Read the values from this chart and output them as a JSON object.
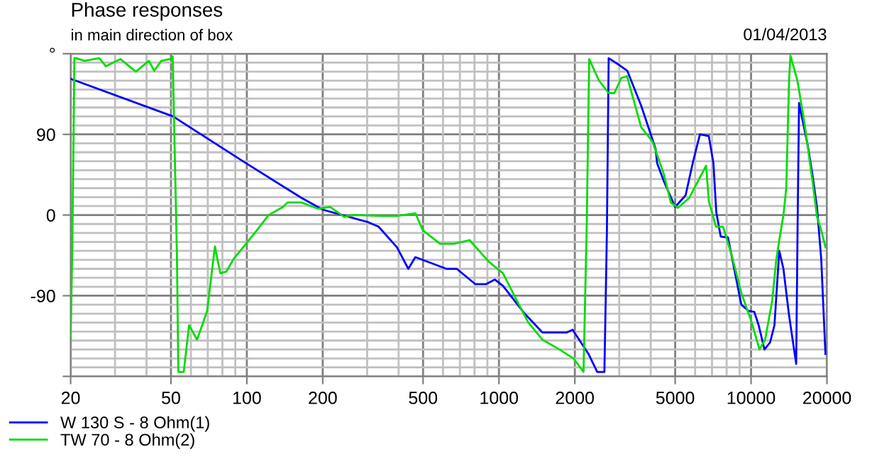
{
  "chart_data": {
    "type": "line",
    "title": "Phase responses",
    "subtitle": "in main direction of box",
    "annotations": [
      "01/04/2013"
    ],
    "log": "x",
    "xlim": [
      20,
      20000
    ],
    "xticks": [
      20,
      50,
      100,
      200,
      500,
      1000,
      2000,
      5000,
      10000,
      20000
    ],
    "ylim": [
      -180,
      180
    ],
    "yticks": [
      {
        "value": 180,
        "label": "°"
      },
      90,
      0,
      -90,
      {
        "value": -180,
        "label": null
      }
    ],
    "grid": true,
    "legend": "bottom",
    "line_style": "solid",
    "marker": "none",
    "series": [
      {
        "name": "W 130 S - 8 Ohm(1)",
        "color": "#0000ff",
        "x": [
          20,
          51,
          99,
          165,
          200,
          303,
          333,
          394,
          437,
          466,
          619,
          680,
          805,
          890,
          962,
          1038,
          1265,
          1487,
          1862,
          1960,
          2266,
          2454,
          2620,
          2680,
          2724,
          3013,
          3228,
          3666,
          4180,
          4240,
          4505,
          5000,
          5500,
          5870,
          6270,
          6800,
          7090,
          7280,
          7580,
          8100,
          9150,
          9780,
          10300,
          10720,
          11300,
          11900,
          12380,
          12940,
          13440,
          14150,
          15100,
          15300,
          15500,
          16800,
          17500,
          18270,
          18980,
          19730
        ],
        "values": [
          152,
          110,
          58,
          19,
          6,
          -8,
          -13,
          -36,
          -60,
          -47,
          -60,
          -60,
          -77,
          -77,
          -72,
          -79,
          -110,
          -131,
          -131,
          -128,
          -155,
          -175,
          -175,
          -20,
          175,
          167,
          161,
          122,
          74,
          58,
          38,
          9,
          22,
          58,
          90,
          88,
          58,
          3,
          -24,
          -25,
          -100,
          -107,
          -108,
          -123,
          -150,
          -142,
          -123,
          -40,
          -60,
          -112,
          -166,
          -10,
          125,
          77,
          46,
          8,
          -49,
          -155
        ]
      },
      {
        "name": "TW 70 - 8 Ohm(2)",
        "color": "#00dd00",
        "x": [
          20,
          20.3,
          20.7,
          21,
          22.7,
          26,
          27.6,
          31.5,
          36.3,
          40.9,
          42.9,
          45.8,
          49.6,
          50.8,
          52.8,
          53.5,
          56.2,
          59,
          63.5,
          69.6,
          74.7,
          78.5,
          83,
          88.6,
          98.6,
          109.6,
          122,
          139,
          145,
          165,
          192,
          214,
          243,
          267,
          346,
          394,
          466,
          499,
          584,
          663,
          765,
          911,
          1038,
          1181,
          1308,
          1487,
          1737,
          1976,
          2165,
          2230,
          2280,
          2494,
          2724,
          2868,
          3059,
          3220,
          3666,
          4065,
          4505,
          4806,
          5126,
          5680,
          6380,
          6632,
          6806,
          7260,
          7744,
          8363,
          9150,
          10010,
          10800,
          11370,
          12125,
          12600,
          12940,
          13440,
          13790,
          14150,
          14330,
          15270,
          16280,
          17580,
          18270,
          18980,
          19730
        ],
        "values": [
          -139,
          -40,
          175,
          175,
          172,
          175,
          166,
          174,
          160,
          172,
          161,
          172,
          174,
          177,
          -44,
          -175,
          -175,
          -123,
          -139,
          -107,
          -35,
          -65,
          -63,
          -49,
          -33,
          -17,
          0,
          9,
          14,
          14,
          7,
          9,
          -2,
          0,
          -1,
          -1,
          2,
          -17,
          -32,
          -32,
          -28,
          -52,
          -65,
          -96,
          -120,
          -139,
          -150,
          -160,
          -175,
          -10,
          174,
          150,
          136,
          136,
          153,
          155,
          98,
          82,
          46,
          14,
          8,
          19,
          46,
          55,
          15,
          -13,
          -13,
          -44,
          -87,
          -118,
          -150,
          -139,
          -96,
          -49,
          -28,
          0,
          30,
          150,
          178,
          150,
          103,
          35,
          -2,
          -17,
          -36
        ]
      }
    ]
  }
}
